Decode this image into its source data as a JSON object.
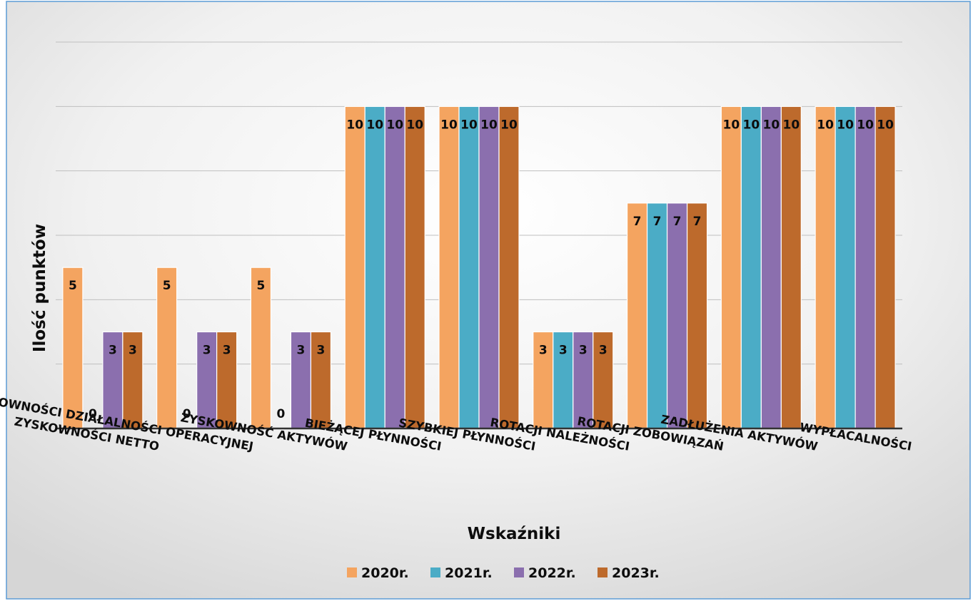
{
  "chart_data": {
    "type": "bar",
    "title": "",
    "xlabel": "Wskaźniki",
    "ylabel": "Ilość punktów",
    "ylim": [
      0,
      12
    ],
    "grid": true,
    "legend_position": "bottom",
    "categories": [
      "ZYSKOWNOŚCI  NETTO",
      "ZYSKOWNOŚCI DZIAŁALNOŚCI OPERACYJNEJ",
      "ZYSKOWNOŚĆ AKTYWÓW",
      "BIEŻĄCEJ PŁYNNOŚCI",
      "SZYBKIEJ PŁYNNOŚCI",
      "ROTACJI NALEŻNOŚCI",
      "ROTACJI ZOBOWIĄZAŃ",
      "ZADŁUŻENIA AKTYWÓW",
      "WYPŁACALNOŚCI"
    ],
    "series": [
      {
        "name": "2020r.",
        "color": "#f4a460",
        "values": [
          5,
          5,
          5,
          10,
          10,
          3,
          7,
          10,
          10
        ]
      },
      {
        "name": "2021r.",
        "color": "#4bacc6",
        "values": [
          0,
          0,
          0,
          10,
          10,
          3,
          7,
          10,
          10
        ]
      },
      {
        "name": "2022r.",
        "color": "#8b6fae",
        "values": [
          3,
          3,
          3,
          10,
          10,
          3,
          7,
          10,
          10
        ]
      },
      {
        "name": "2023r.",
        "color": "#bd6a2c",
        "values": [
          3,
          3,
          3,
          10,
          10,
          3,
          7,
          10,
          10
        ]
      }
    ]
  }
}
